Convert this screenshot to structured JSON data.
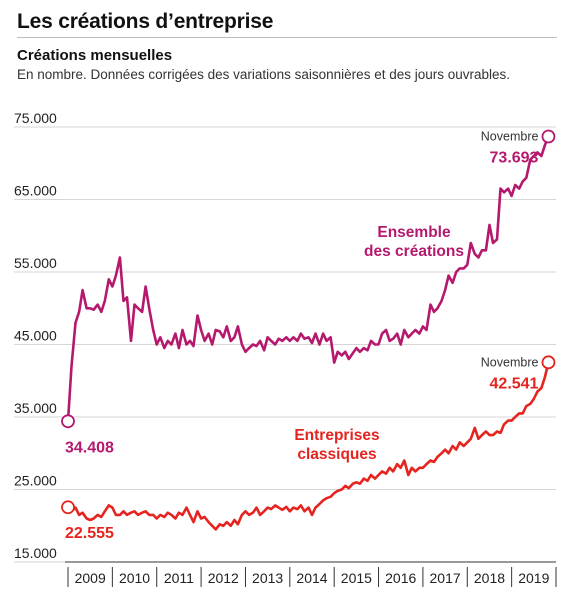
{
  "header": {
    "title": "Les créations d’entreprise",
    "subtitle": "Créations mensuelles",
    "note": "En nombre. Données corrigées des variations saisonnières et des jours ouvrables."
  },
  "colors": {
    "ensemble": "#b5196e",
    "classiques": "#e52420",
    "grid": "#d6d6d6",
    "axis": "#333333"
  },
  "chart_data": {
    "type": "line",
    "title": "Créations mensuelles",
    "ylim": [
      15000,
      75000
    ],
    "yticks": [
      15000,
      25000,
      35000,
      45000,
      55000,
      65000,
      75000
    ],
    "ytick_labels": [
      "15.000",
      "25.000",
      "35.000",
      "45.000",
      "55.000",
      "65.000",
      "75.000"
    ],
    "xlim": [
      2009.0,
      2020.0
    ],
    "years": [
      "2009",
      "2010",
      "2011",
      "2012",
      "2013",
      "2014",
      "2015",
      "2016",
      "2017",
      "2018",
      "2019"
    ],
    "grid": true,
    "series": [
      {
        "name_lines": [
          "Ensemble",
          "des créations"
        ],
        "color_key": "ensemble",
        "points": [
          [
            2009.0,
            34408
          ],
          [
            2009.08,
            42000
          ],
          [
            2009.17,
            48000
          ],
          [
            2009.25,
            49500
          ],
          [
            2009.33,
            52500
          ],
          [
            2009.42,
            50000
          ],
          [
            2009.5,
            50000
          ],
          [
            2009.58,
            49800
          ],
          [
            2009.67,
            50500
          ],
          [
            2009.75,
            49500
          ],
          [
            2009.83,
            51000
          ],
          [
            2009.92,
            54000
          ],
          [
            2010.0,
            53000
          ],
          [
            2010.08,
            54500
          ],
          [
            2010.17,
            57000
          ],
          [
            2010.25,
            51000
          ],
          [
            2010.33,
            51500
          ],
          [
            2010.42,
            45500
          ],
          [
            2010.5,
            50500
          ],
          [
            2010.58,
            50000
          ],
          [
            2010.67,
            49500
          ],
          [
            2010.75,
            53000
          ],
          [
            2010.83,
            50000
          ],
          [
            2010.92,
            47000
          ],
          [
            2011.0,
            45000
          ],
          [
            2011.08,
            46000
          ],
          [
            2011.17,
            44500
          ],
          [
            2011.25,
            45500
          ],
          [
            2011.33,
            45000
          ],
          [
            2011.42,
            46500
          ],
          [
            2011.5,
            44500
          ],
          [
            2011.58,
            47000
          ],
          [
            2011.67,
            45000
          ],
          [
            2011.75,
            45500
          ],
          [
            2011.83,
            44800
          ],
          [
            2011.92,
            49000
          ],
          [
            2012.0,
            47000
          ],
          [
            2012.08,
            45500
          ],
          [
            2012.17,
            46500
          ],
          [
            2012.25,
            45000
          ],
          [
            2012.33,
            47000
          ],
          [
            2012.42,
            46800
          ],
          [
            2012.5,
            46000
          ],
          [
            2012.58,
            47500
          ],
          [
            2012.67,
            45500
          ],
          [
            2012.75,
            46000
          ],
          [
            2012.83,
            47500
          ],
          [
            2012.92,
            45000
          ],
          [
            2013.0,
            44000
          ],
          [
            2013.08,
            44500
          ],
          [
            2013.17,
            45000
          ],
          [
            2013.25,
            44800
          ],
          [
            2013.33,
            45500
          ],
          [
            2013.42,
            44200
          ],
          [
            2013.5,
            46000
          ],
          [
            2013.58,
            45500
          ],
          [
            2013.67,
            45000
          ],
          [
            2013.75,
            45800
          ],
          [
            2013.83,
            45500
          ],
          [
            2013.92,
            46000
          ],
          [
            2014.0,
            45500
          ],
          [
            2014.08,
            46000
          ],
          [
            2014.17,
            45500
          ],
          [
            2014.25,
            46500
          ],
          [
            2014.33,
            45800
          ],
          [
            2014.42,
            46000
          ],
          [
            2014.5,
            45200
          ],
          [
            2014.58,
            46500
          ],
          [
            2014.67,
            45000
          ],
          [
            2014.75,
            46500
          ],
          [
            2014.83,
            45500
          ],
          [
            2014.92,
            46000
          ],
          [
            2015.0,
            42500
          ],
          [
            2015.08,
            44000
          ],
          [
            2015.17,
            43500
          ],
          [
            2015.25,
            44000
          ],
          [
            2015.33,
            43000
          ],
          [
            2015.42,
            43800
          ],
          [
            2015.5,
            44500
          ],
          [
            2015.58,
            44000
          ],
          [
            2015.67,
            44500
          ],
          [
            2015.75,
            44200
          ],
          [
            2015.83,
            45500
          ],
          [
            2015.92,
            45000
          ],
          [
            2016.0,
            45000
          ],
          [
            2016.08,
            46500
          ],
          [
            2016.17,
            47000
          ],
          [
            2016.25,
            45500
          ],
          [
            2016.33,
            45800
          ],
          [
            2016.42,
            46500
          ],
          [
            2016.5,
            45000
          ],
          [
            2016.58,
            47000
          ],
          [
            2016.67,
            46000
          ],
          [
            2016.75,
            46500
          ],
          [
            2016.83,
            47000
          ],
          [
            2016.92,
            46500
          ],
          [
            2017.0,
            47500
          ],
          [
            2017.08,
            47000
          ],
          [
            2017.17,
            50500
          ],
          [
            2017.25,
            49500
          ],
          [
            2017.33,
            50000
          ],
          [
            2017.42,
            51000
          ],
          [
            2017.5,
            52500
          ],
          [
            2017.58,
            54500
          ],
          [
            2017.67,
            53500
          ],
          [
            2017.75,
            55000
          ],
          [
            2017.83,
            55500
          ],
          [
            2017.92,
            55500
          ],
          [
            2018.0,
            56000
          ],
          [
            2018.08,
            59000
          ],
          [
            2018.17,
            57500
          ],
          [
            2018.25,
            57000
          ],
          [
            2018.33,
            58000
          ],
          [
            2018.42,
            58000
          ],
          [
            2018.5,
            61500
          ],
          [
            2018.58,
            59000
          ],
          [
            2018.67,
            59500
          ],
          [
            2018.75,
            66500
          ],
          [
            2018.83,
            66000
          ],
          [
            2018.92,
            66500
          ],
          [
            2019.0,
            65500
          ],
          [
            2019.08,
            67000
          ],
          [
            2019.17,
            66500
          ],
          [
            2019.25,
            67500
          ],
          [
            2019.33,
            68000
          ],
          [
            2019.42,
            70500
          ],
          [
            2019.5,
            71000
          ],
          [
            2019.58,
            71500
          ],
          [
            2019.67,
            71000
          ],
          [
            2019.75,
            72500
          ],
          [
            2019.83,
            73693
          ]
        ],
        "end_month": "Novembre",
        "end_value": "73.693",
        "start_value": "34.408"
      },
      {
        "name_lines": [
          "Entreprises",
          "classiques"
        ],
        "color_key": "classiques",
        "points": [
          [
            2009.0,
            22555
          ],
          [
            2009.08,
            22000
          ],
          [
            2009.17,
            22500
          ],
          [
            2009.25,
            21500
          ],
          [
            2009.33,
            21800
          ],
          [
            2009.42,
            21000
          ],
          [
            2009.5,
            20800
          ],
          [
            2009.58,
            21000
          ],
          [
            2009.67,
            21500
          ],
          [
            2009.75,
            21200
          ],
          [
            2009.83,
            22000
          ],
          [
            2009.92,
            22800
          ],
          [
            2010.0,
            22500
          ],
          [
            2010.08,
            21500
          ],
          [
            2010.17,
            21500
          ],
          [
            2010.25,
            22000
          ],
          [
            2010.33,
            21500
          ],
          [
            2010.42,
            21800
          ],
          [
            2010.5,
            22000
          ],
          [
            2010.58,
            21500
          ],
          [
            2010.67,
            21800
          ],
          [
            2010.75,
            22000
          ],
          [
            2010.83,
            21500
          ],
          [
            2010.92,
            21500
          ],
          [
            2011.0,
            21000
          ],
          [
            2011.08,
            21500
          ],
          [
            2011.17,
            21200
          ],
          [
            2011.25,
            21800
          ],
          [
            2011.33,
            21500
          ],
          [
            2011.42,
            21000
          ],
          [
            2011.5,
            21800
          ],
          [
            2011.58,
            21500
          ],
          [
            2011.67,
            22500
          ],
          [
            2011.75,
            21500
          ],
          [
            2011.83,
            20500
          ],
          [
            2011.92,
            22000
          ],
          [
            2012.0,
            21000
          ],
          [
            2012.08,
            21200
          ],
          [
            2012.17,
            20500
          ],
          [
            2012.25,
            20000
          ],
          [
            2012.33,
            19500
          ],
          [
            2012.42,
            20200
          ],
          [
            2012.5,
            20000
          ],
          [
            2012.58,
            20500
          ],
          [
            2012.67,
            20000
          ],
          [
            2012.75,
            20800
          ],
          [
            2012.83,
            20200
          ],
          [
            2012.92,
            21500
          ],
          [
            2013.0,
            22000
          ],
          [
            2013.08,
            21500
          ],
          [
            2013.17,
            21800
          ],
          [
            2013.25,
            22500
          ],
          [
            2013.33,
            21500
          ],
          [
            2013.42,
            22000
          ],
          [
            2013.5,
            22500
          ],
          [
            2013.58,
            22300
          ],
          [
            2013.67,
            22800
          ],
          [
            2013.75,
            22500
          ],
          [
            2013.83,
            22200
          ],
          [
            2013.92,
            22600
          ],
          [
            2014.0,
            22000
          ],
          [
            2014.08,
            22500
          ],
          [
            2014.17,
            22300
          ],
          [
            2014.25,
            22800
          ],
          [
            2014.33,
            22000
          ],
          [
            2014.42,
            22500
          ],
          [
            2014.5,
            21500
          ],
          [
            2014.58,
            22500
          ],
          [
            2014.67,
            23000
          ],
          [
            2014.75,
            23500
          ],
          [
            2014.83,
            23800
          ],
          [
            2014.92,
            24000
          ],
          [
            2015.0,
            24500
          ],
          [
            2015.08,
            24800
          ],
          [
            2015.17,
            25000
          ],
          [
            2015.25,
            25500
          ],
          [
            2015.33,
            25200
          ],
          [
            2015.42,
            25800
          ],
          [
            2015.5,
            26000
          ],
          [
            2015.58,
            25800
          ],
          [
            2015.67,
            26500
          ],
          [
            2015.75,
            26200
          ],
          [
            2015.83,
            27000
          ],
          [
            2015.92,
            26500
          ],
          [
            2016.0,
            27000
          ],
          [
            2016.08,
            27500
          ],
          [
            2016.17,
            27200
          ],
          [
            2016.25,
            28000
          ],
          [
            2016.33,
            27500
          ],
          [
            2016.42,
            28500
          ],
          [
            2016.5,
            28000
          ],
          [
            2016.58,
            29000
          ],
          [
            2016.67,
            27000
          ],
          [
            2016.75,
            28000
          ],
          [
            2016.83,
            27500
          ],
          [
            2016.92,
            28000
          ],
          [
            2017.0,
            28000
          ],
          [
            2017.08,
            28500
          ],
          [
            2017.17,
            29000
          ],
          [
            2017.25,
            28800
          ],
          [
            2017.33,
            29500
          ],
          [
            2017.42,
            30000
          ],
          [
            2017.5,
            30500
          ],
          [
            2017.58,
            30000
          ],
          [
            2017.67,
            31000
          ],
          [
            2017.75,
            30500
          ],
          [
            2017.83,
            31500
          ],
          [
            2017.92,
            31000
          ],
          [
            2018.0,
            31500
          ],
          [
            2018.08,
            32000
          ],
          [
            2018.17,
            33500
          ],
          [
            2018.25,
            32000
          ],
          [
            2018.33,
            32500
          ],
          [
            2018.42,
            33000
          ],
          [
            2018.5,
            32500
          ],
          [
            2018.58,
            32500
          ],
          [
            2018.67,
            33000
          ],
          [
            2018.75,
            32800
          ],
          [
            2018.83,
            34000
          ],
          [
            2018.92,
            34500
          ],
          [
            2019.0,
            34500
          ],
          [
            2019.08,
            35000
          ],
          [
            2019.17,
            35500
          ],
          [
            2019.25,
            35500
          ],
          [
            2019.33,
            36500
          ],
          [
            2019.42,
            36800
          ],
          [
            2019.5,
            37500
          ],
          [
            2019.58,
            38500
          ],
          [
            2019.67,
            39000
          ],
          [
            2019.75,
            40500
          ],
          [
            2019.83,
            42541
          ]
        ],
        "end_month": "Novembre",
        "end_value": "42.541",
        "start_value": "22.555"
      }
    ]
  }
}
